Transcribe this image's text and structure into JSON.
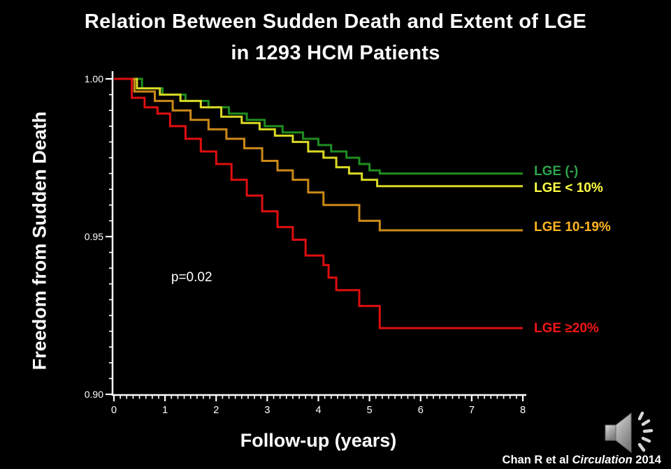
{
  "slide": {
    "title_line1": "Relation Between Sudden Death and Extent of LGE",
    "title_line2": "in 1293 HCM Patients",
    "citation": {
      "prefix": "Chan R et al",
      "journal": "Circulation",
      "year": "2014"
    },
    "background_color": "#000000",
    "title_color": "#ffffff",
    "audio_icon": "speaker-icon"
  },
  "chart_data": {
    "type": "line",
    "subtype": "kaplan-meier-step",
    "title": "",
    "xlabel": "Follow-up (years)",
    "ylabel": "Freedom from Sudden Death",
    "xlim": [
      0,
      8
    ],
    "ylim": [
      0.9,
      1.0
    ],
    "xticks": [
      "0",
      "1",
      "2",
      "3",
      "4",
      "5",
      "6",
      "7",
      "8"
    ],
    "xtick_values": [
      0,
      1,
      2,
      3,
      4,
      5,
      6,
      7,
      8
    ],
    "yticks": [
      "1.00",
      "0.95",
      "0.90"
    ],
    "ytick_values": [
      1.0,
      0.95,
      0.9
    ],
    "x_minor_step": 0.125,
    "y_minor_step": 0.005,
    "grid": false,
    "axis_color": "#ffffff",
    "legend_position": "right-outside",
    "annotation": {
      "text": "p=0.02",
      "x": 1.12,
      "y": 0.937
    },
    "series": [
      {
        "name": "LGE (-)",
        "line_color": "#1f8c1f",
        "label_color": "#2ea24e",
        "points": [
          [
            0,
            1.0
          ],
          [
            0.55,
            0.997
          ],
          [
            0.95,
            0.995
          ],
          [
            1.4,
            0.993
          ],
          [
            1.85,
            0.991
          ],
          [
            2.25,
            0.989
          ],
          [
            2.6,
            0.987
          ],
          [
            2.95,
            0.985
          ],
          [
            3.3,
            0.983
          ],
          [
            3.7,
            0.981
          ],
          [
            4.0,
            0.979
          ],
          [
            4.25,
            0.977
          ],
          [
            4.55,
            0.975
          ],
          [
            4.8,
            0.973
          ],
          [
            5.0,
            0.971
          ],
          [
            5.2,
            0.97
          ],
          [
            8,
            0.97
          ]
        ]
      },
      {
        "name": "LGE < 10%",
        "line_color": "#d9d925",
        "label_color": "#ffff45",
        "points": [
          [
            0,
            1.0
          ],
          [
            0.45,
            0.997
          ],
          [
            0.9,
            0.995
          ],
          [
            1.3,
            0.993
          ],
          [
            1.7,
            0.991
          ],
          [
            2.1,
            0.988
          ],
          [
            2.5,
            0.986
          ],
          [
            2.85,
            0.984
          ],
          [
            3.15,
            0.982
          ],
          [
            3.5,
            0.98
          ],
          [
            3.8,
            0.977
          ],
          [
            4.1,
            0.975
          ],
          [
            4.35,
            0.972
          ],
          [
            4.6,
            0.97
          ],
          [
            4.85,
            0.968
          ],
          [
            5.15,
            0.966
          ],
          [
            8,
            0.966
          ]
        ]
      },
      {
        "name": "LGE 10-19%",
        "line_color": "#cc8a18",
        "label_color": "#ffb41e",
        "points": [
          [
            0,
            1.0
          ],
          [
            0.4,
            0.996
          ],
          [
            0.8,
            0.993
          ],
          [
            1.15,
            0.99
          ],
          [
            1.5,
            0.987
          ],
          [
            1.85,
            0.984
          ],
          [
            2.2,
            0.981
          ],
          [
            2.55,
            0.978
          ],
          [
            2.9,
            0.974
          ],
          [
            3.2,
            0.971
          ],
          [
            3.5,
            0.968
          ],
          [
            3.8,
            0.964
          ],
          [
            4.1,
            0.96
          ],
          [
            4.8,
            0.955
          ],
          [
            5.2,
            0.952
          ],
          [
            8,
            0.952
          ]
        ]
      },
      {
        "name": "LGE ≥20%",
        "line_color": "#de0e0e",
        "label_color": "#f51515",
        "points": [
          [
            0,
            1.0
          ],
          [
            0.35,
            0.994
          ],
          [
            0.6,
            0.991
          ],
          [
            0.85,
            0.989
          ],
          [
            1.1,
            0.985
          ],
          [
            1.4,
            0.981
          ],
          [
            1.7,
            0.977
          ],
          [
            2.0,
            0.973
          ],
          [
            2.3,
            0.968
          ],
          [
            2.6,
            0.963
          ],
          [
            2.9,
            0.958
          ],
          [
            3.2,
            0.953
          ],
          [
            3.5,
            0.949
          ],
          [
            3.75,
            0.944
          ],
          [
            4.1,
            0.941
          ],
          [
            4.2,
            0.937
          ],
          [
            4.35,
            0.933
          ],
          [
            4.8,
            0.928
          ],
          [
            5.2,
            0.921
          ],
          [
            8,
            0.921
          ]
        ]
      }
    ]
  }
}
